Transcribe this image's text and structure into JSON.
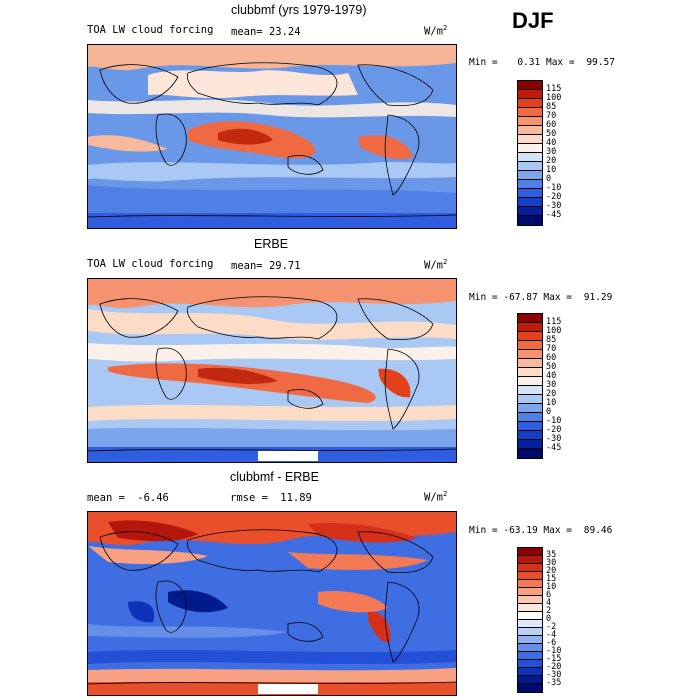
{
  "season": "DJF",
  "panels": [
    {
      "title": "clubbmf (yrs 1979-1979)",
      "left_label": "TOA LW cloud forcing",
      "mean_label": "mean=",
      "mean_value": "23.24",
      "units": "W/m",
      "units_sup": "2",
      "min_label": "Min =",
      "min_value": "0.31",
      "max_label": "Max =",
      "max_value": "99.57",
      "colorbar": {
        "labels": [
          "115",
          "100",
          "85",
          "70",
          "60",
          "50",
          "40",
          "30",
          "20",
          "10",
          "0",
          "-10",
          "-20",
          "-30",
          "-45"
        ],
        "colors": [
          "#8b0000",
          "#c01a08",
          "#e3401c",
          "#f06a42",
          "#f59370",
          "#f9b99c",
          "#fcdcc6",
          "#fbf1ea",
          "#d3e4f8",
          "#a9c8f3",
          "#7ba6ec",
          "#4f80e6",
          "#2f5de0",
          "#173fc6",
          "#06209b",
          "#000a6b"
        ]
      }
    },
    {
      "title": "ERBE",
      "left_label": "TOA LW cloud forcing",
      "mean_label": "mean=",
      "mean_value": "29.71",
      "units": "W/m",
      "units_sup": "2",
      "min_label": "Min =",
      "min_value": "-67.87",
      "max_label": "Max =",
      "max_value": "91.29",
      "colorbar": {
        "labels": [
          "115",
          "100",
          "85",
          "70",
          "60",
          "50",
          "40",
          "30",
          "20",
          "10",
          "0",
          "-10",
          "-20",
          "-30",
          "-45"
        ],
        "colors": [
          "#8b0000",
          "#c01a08",
          "#e3401c",
          "#f06a42",
          "#f59370",
          "#f9b99c",
          "#fcdcc6",
          "#fbf1ea",
          "#d3e4f8",
          "#a9c8f3",
          "#7ba6ec",
          "#4f80e6",
          "#2f5de0",
          "#173fc6",
          "#06209b",
          "#000a6b"
        ]
      }
    },
    {
      "title": "clubbmf - ERBE",
      "left_label": "mean =",
      "left_value": "-6.46",
      "rmse_label": "rmse =",
      "rmse_value": "11.89",
      "units": "W/m",
      "units_sup": "2",
      "min_label": "Min =",
      "min_value": "-63.19",
      "max_label": "Max =",
      "max_value": "89.46",
      "colorbar": {
        "labels": [
          "35",
          "30",
          "20",
          "15",
          "10",
          "6",
          "4",
          "2",
          "0",
          "-2",
          "-4",
          "-6",
          "-10",
          "-15",
          "-20",
          "-30",
          "-35"
        ],
        "colors": [
          "#8b0000",
          "#b3170b",
          "#d5301a",
          "#ea4f2c",
          "#f47a55",
          "#f8a082",
          "#fbc6b0",
          "#fde6dc",
          "#ffffff",
          "#dde9fa",
          "#b9d1f5",
          "#8db2ef",
          "#6590e8",
          "#3f6ee3",
          "#2450d8",
          "#0e33b8",
          "#021b8c",
          "#000a6b"
        ]
      }
    }
  ]
}
